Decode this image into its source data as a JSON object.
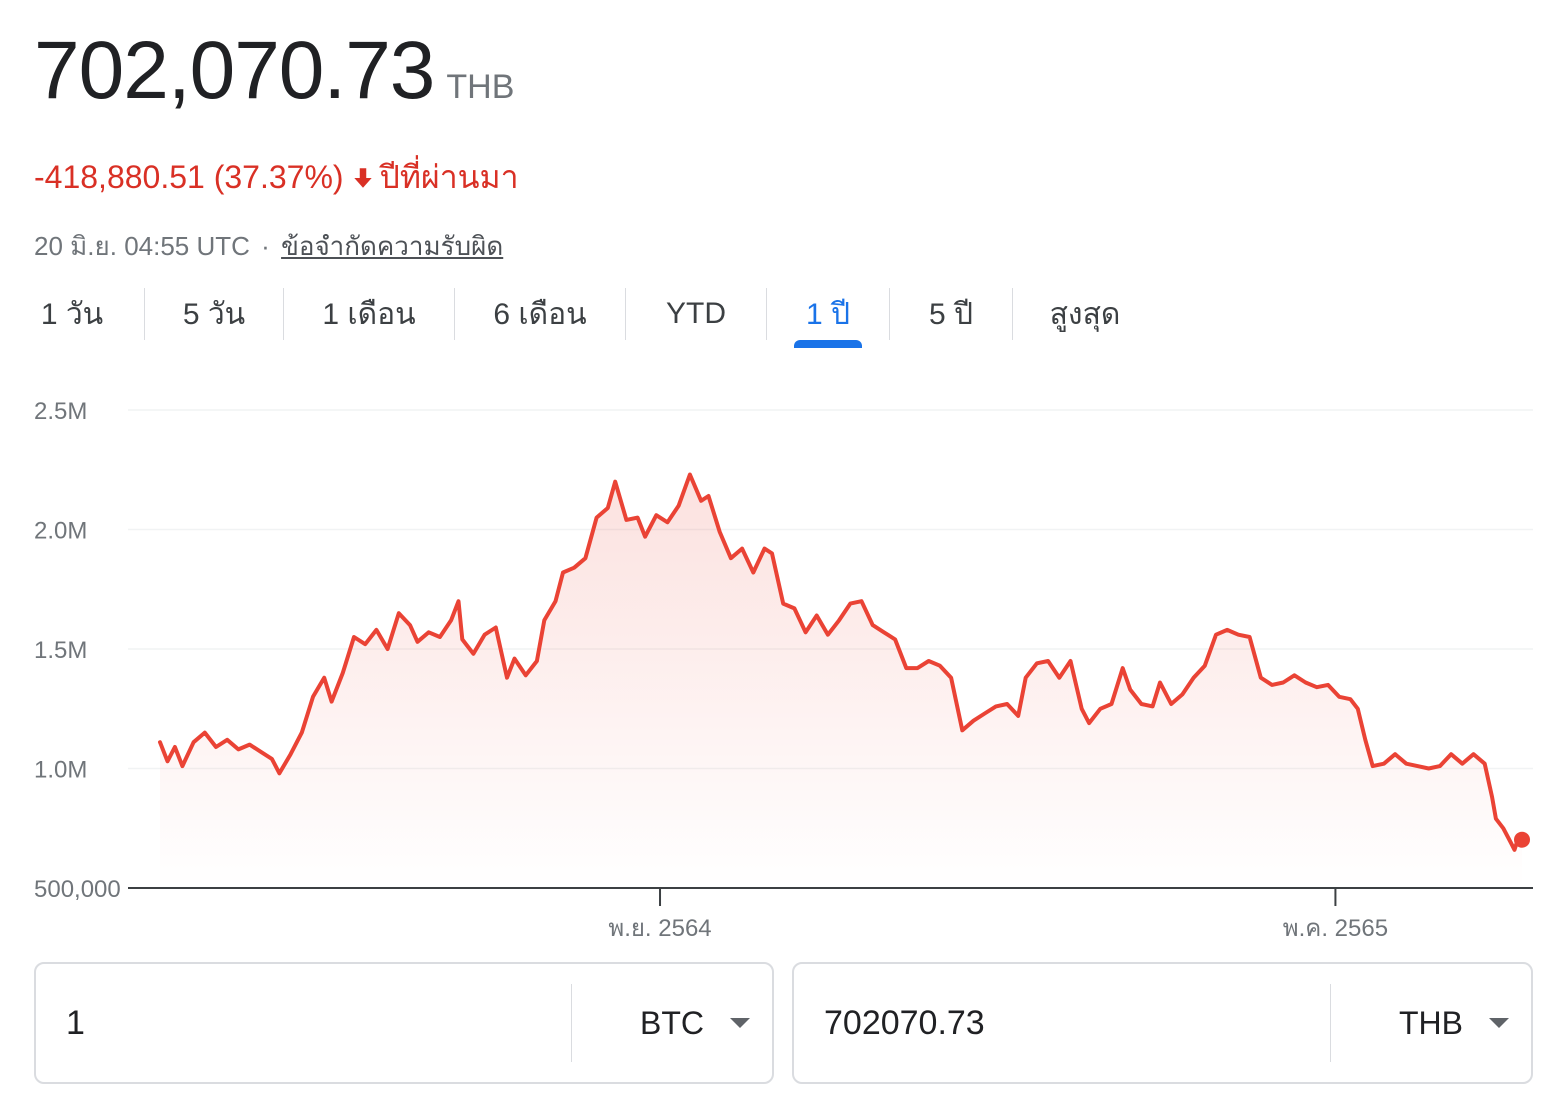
{
  "header": {
    "price": "702,070.73",
    "currency": "THB",
    "change": "-418,880.51 (37.37%)",
    "change_period": "ปีที่ผ่านมา",
    "timestamp": "20 มิ.ย. 04:55 UTC",
    "separator": "·",
    "disclaimer": "ข้อจำกัดความรับผิด"
  },
  "tabs": [
    {
      "label": "1 วัน"
    },
    {
      "label": "5 วัน"
    },
    {
      "label": "1 เดือน"
    },
    {
      "label": "6 เดือน"
    },
    {
      "label": "YTD"
    },
    {
      "label": "1 ปี"
    },
    {
      "label": "5 ปี"
    },
    {
      "label": "สูงสุด"
    }
  ],
  "active_tab": 5,
  "colors": {
    "line": "#ea4335",
    "negative": "#d93025",
    "accent": "#1a73e8",
    "grid": "#f1f3f4"
  },
  "chart_data": {
    "type": "line",
    "title": "",
    "xlabel": "",
    "ylabel": "",
    "ylim": [
      500000,
      2500000
    ],
    "yticks": [
      {
        "label": "2.5M",
        "value": 2500000
      },
      {
        "label": "2.0M",
        "value": 2000000
      },
      {
        "label": "1.5M",
        "value": 1500000
      },
      {
        "label": "1.0M",
        "value": 1000000
      },
      {
        "label": "500,000",
        "value": 500000
      }
    ],
    "xlim": [
      "2021-06-20",
      "2022-06-20"
    ],
    "xticks": [
      {
        "label": "พ.ย. 2564",
        "date": "2021-11-01"
      },
      {
        "label": "พ.ค. 2565",
        "date": "2022-05-01"
      }
    ],
    "grid": true,
    "series": [
      {
        "values": [
          [
            "2021-06-20",
            1110000
          ],
          [
            "2021-06-22",
            1030000
          ],
          [
            "2021-06-24",
            1090000
          ],
          [
            "2021-06-26",
            1010000
          ],
          [
            "2021-06-29",
            1110000
          ],
          [
            "2021-07-02",
            1150000
          ],
          [
            "2021-07-05",
            1090000
          ],
          [
            "2021-07-08",
            1120000
          ],
          [
            "2021-07-11",
            1080000
          ],
          [
            "2021-07-14",
            1100000
          ],
          [
            "2021-07-17",
            1070000
          ],
          [
            "2021-07-20",
            1040000
          ],
          [
            "2021-07-22",
            980000
          ],
          [
            "2021-07-25",
            1060000
          ],
          [
            "2021-07-28",
            1150000
          ],
          [
            "2021-07-31",
            1300000
          ],
          [
            "2021-08-03",
            1380000
          ],
          [
            "2021-08-05",
            1280000
          ],
          [
            "2021-08-08",
            1400000
          ],
          [
            "2021-08-11",
            1550000
          ],
          [
            "2021-08-14",
            1520000
          ],
          [
            "2021-08-17",
            1580000
          ],
          [
            "2021-08-20",
            1500000
          ],
          [
            "2021-08-23",
            1650000
          ],
          [
            "2021-08-26",
            1600000
          ],
          [
            "2021-08-28",
            1530000
          ],
          [
            "2021-08-31",
            1570000
          ],
          [
            "2021-09-03",
            1550000
          ],
          [
            "2021-09-06",
            1620000
          ],
          [
            "2021-09-08",
            1700000
          ],
          [
            "2021-09-09",
            1540000
          ],
          [
            "2021-09-12",
            1480000
          ],
          [
            "2021-09-15",
            1560000
          ],
          [
            "2021-09-18",
            1590000
          ],
          [
            "2021-09-21",
            1380000
          ],
          [
            "2021-09-23",
            1460000
          ],
          [
            "2021-09-26",
            1390000
          ],
          [
            "2021-09-29",
            1450000
          ],
          [
            "2021-10-01",
            1620000
          ],
          [
            "2021-10-04",
            1700000
          ],
          [
            "2021-10-06",
            1820000
          ],
          [
            "2021-10-09",
            1840000
          ],
          [
            "2021-10-12",
            1880000
          ],
          [
            "2021-10-15",
            2050000
          ],
          [
            "2021-10-18",
            2090000
          ],
          [
            "2021-10-20",
            2200000
          ],
          [
            "2021-10-23",
            2040000
          ],
          [
            "2021-10-26",
            2050000
          ],
          [
            "2021-10-28",
            1970000
          ],
          [
            "2021-10-31",
            2060000
          ],
          [
            "2021-11-03",
            2030000
          ],
          [
            "2021-11-06",
            2100000
          ],
          [
            "2021-11-09",
            2230000
          ],
          [
            "2021-11-12",
            2120000
          ],
          [
            "2021-11-14",
            2140000
          ],
          [
            "2021-11-17",
            1990000
          ],
          [
            "2021-11-20",
            1880000
          ],
          [
            "2021-11-23",
            1920000
          ],
          [
            "2021-11-26",
            1820000
          ],
          [
            "2021-11-29",
            1920000
          ],
          [
            "2021-12-01",
            1900000
          ],
          [
            "2021-12-04",
            1690000
          ],
          [
            "2021-12-07",
            1670000
          ],
          [
            "2021-12-10",
            1570000
          ],
          [
            "2021-12-13",
            1640000
          ],
          [
            "2021-12-16",
            1560000
          ],
          [
            "2021-12-19",
            1620000
          ],
          [
            "2021-12-22",
            1690000
          ],
          [
            "2021-12-25",
            1700000
          ],
          [
            "2021-12-28",
            1600000
          ],
          [
            "2021-12-31",
            1570000
          ],
          [
            "2022-01-03",
            1540000
          ],
          [
            "2022-01-06",
            1420000
          ],
          [
            "2022-01-09",
            1420000
          ],
          [
            "2022-01-12",
            1450000
          ],
          [
            "2022-01-15",
            1430000
          ],
          [
            "2022-01-18",
            1380000
          ],
          [
            "2022-01-21",
            1160000
          ],
          [
            "2022-01-24",
            1200000
          ],
          [
            "2022-01-27",
            1230000
          ],
          [
            "2022-01-30",
            1260000
          ],
          [
            "2022-02-02",
            1270000
          ],
          [
            "2022-02-05",
            1220000
          ],
          [
            "2022-02-07",
            1380000
          ],
          [
            "2022-02-10",
            1440000
          ],
          [
            "2022-02-13",
            1450000
          ],
          [
            "2022-02-16",
            1380000
          ],
          [
            "2022-02-19",
            1450000
          ],
          [
            "2022-02-22",
            1250000
          ],
          [
            "2022-02-24",
            1190000
          ],
          [
            "2022-02-27",
            1250000
          ],
          [
            "2022-03-02",
            1270000
          ],
          [
            "2022-03-05",
            1420000
          ],
          [
            "2022-03-07",
            1330000
          ],
          [
            "2022-03-10",
            1270000
          ],
          [
            "2022-03-13",
            1260000
          ],
          [
            "2022-03-15",
            1360000
          ],
          [
            "2022-03-18",
            1270000
          ],
          [
            "2022-03-21",
            1310000
          ],
          [
            "2022-03-24",
            1380000
          ],
          [
            "2022-03-27",
            1430000
          ],
          [
            "2022-03-30",
            1560000
          ],
          [
            "2022-04-02",
            1580000
          ],
          [
            "2022-04-05",
            1560000
          ],
          [
            "2022-04-08",
            1550000
          ],
          [
            "2022-04-11",
            1380000
          ],
          [
            "2022-04-14",
            1350000
          ],
          [
            "2022-04-17",
            1360000
          ],
          [
            "2022-04-20",
            1390000
          ],
          [
            "2022-04-23",
            1360000
          ],
          [
            "2022-04-26",
            1340000
          ],
          [
            "2022-04-29",
            1350000
          ],
          [
            "2022-05-02",
            1300000
          ],
          [
            "2022-05-05",
            1290000
          ],
          [
            "2022-05-07",
            1250000
          ],
          [
            "2022-05-09",
            1120000
          ],
          [
            "2022-05-11",
            1010000
          ],
          [
            "2022-05-14",
            1020000
          ],
          [
            "2022-05-17",
            1060000
          ],
          [
            "2022-05-20",
            1020000
          ],
          [
            "2022-05-23",
            1010000
          ],
          [
            "2022-05-26",
            1000000
          ],
          [
            "2022-05-29",
            1010000
          ],
          [
            "2022-06-01",
            1060000
          ],
          [
            "2022-06-04",
            1020000
          ],
          [
            "2022-06-07",
            1060000
          ],
          [
            "2022-06-10",
            1020000
          ],
          [
            "2022-06-12",
            880000
          ],
          [
            "2022-06-13",
            790000
          ],
          [
            "2022-06-15",
            750000
          ],
          [
            "2022-06-17",
            690000
          ],
          [
            "2022-06-18",
            660000
          ],
          [
            "2022-06-19",
            710000
          ],
          [
            "2022-06-20",
            702070.73
          ]
        ]
      }
    ]
  },
  "converter": {
    "from_amount": "1",
    "from_currency": "BTC",
    "to_amount": "702070.73",
    "to_currency": "THB"
  }
}
